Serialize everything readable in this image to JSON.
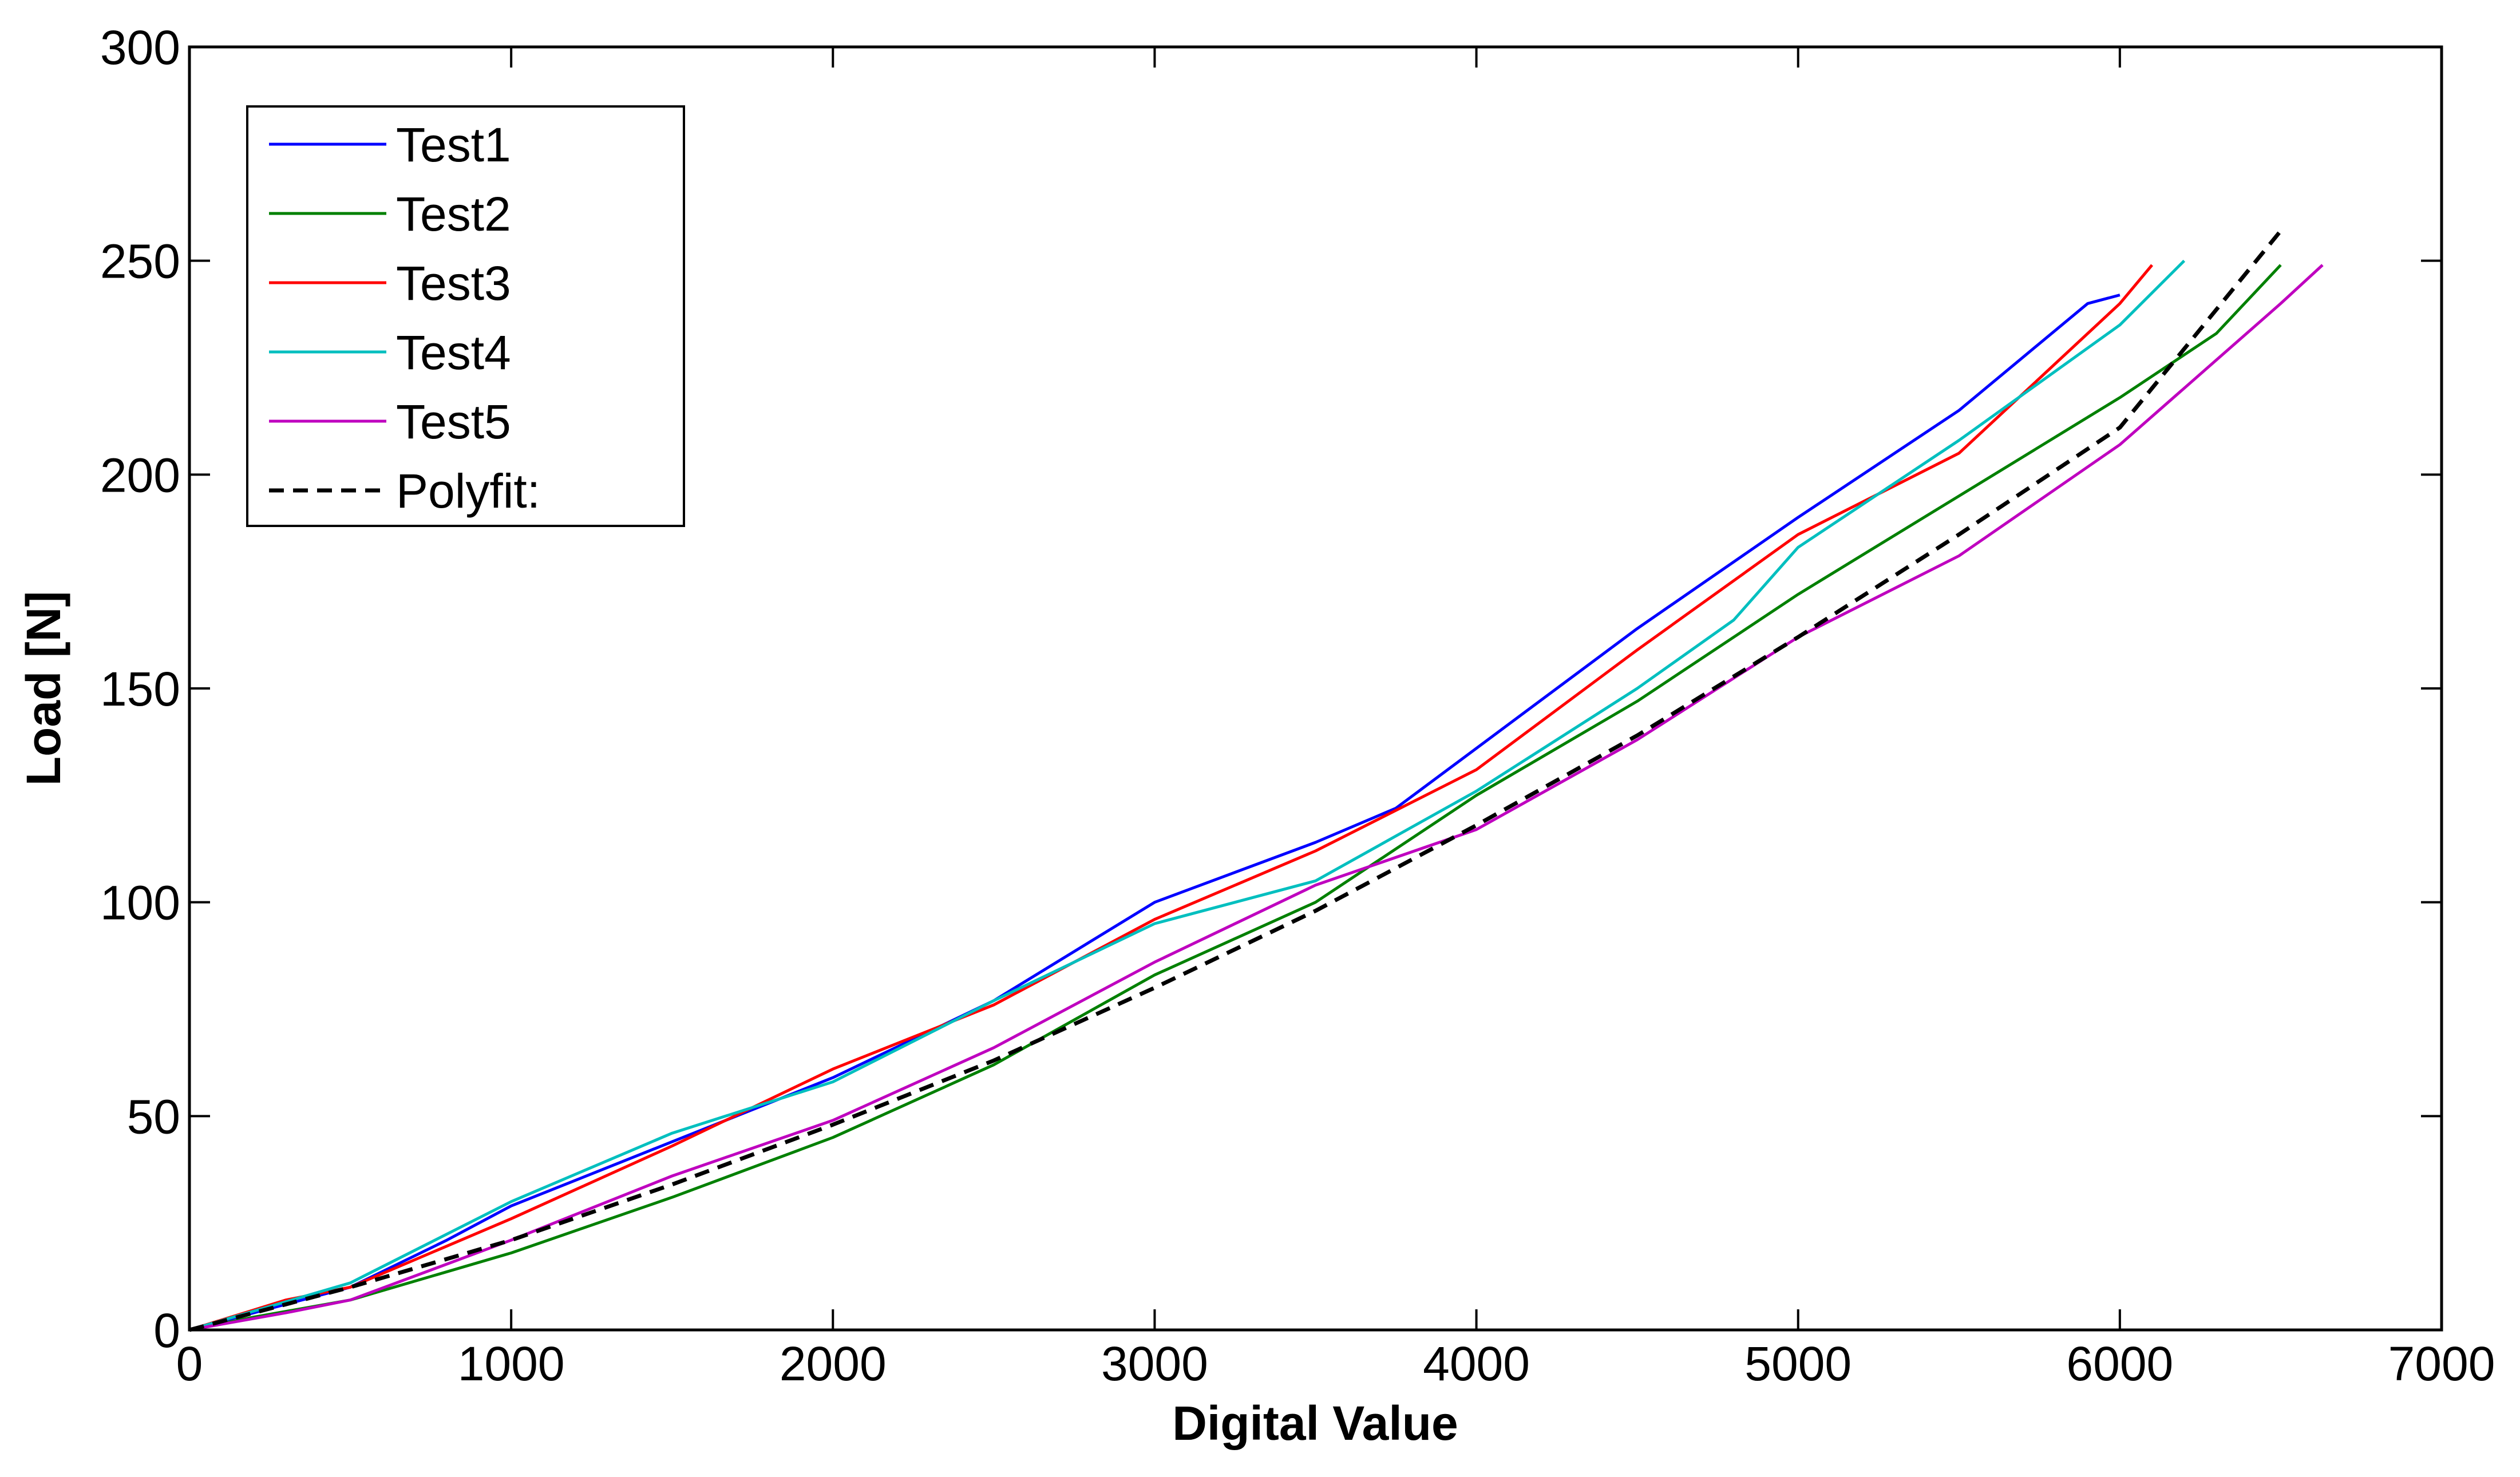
{
  "chart_data": {
    "type": "line",
    "title": "",
    "xlabel": "Digital Value",
    "ylabel": "Load [N]",
    "xlim": [
      0,
      7000
    ],
    "ylim": [
      0,
      300
    ],
    "xticks": [
      0,
      1000,
      2000,
      3000,
      4000,
      5000,
      6000,
      7000
    ],
    "yticks": [
      0,
      50,
      100,
      150,
      200,
      250,
      300
    ],
    "xtick_labels": [
      "0",
      "1000",
      "2000",
      "3000",
      "4000",
      "5000",
      "6000",
      "7000"
    ],
    "ytick_labels": [
      "0",
      "50",
      "100",
      "150",
      "200",
      "250",
      "300"
    ],
    "grid": false,
    "legend_position": "top-left",
    "series": [
      {
        "name": "Test1",
        "color": "#0000ff",
        "dash": "solid",
        "x": [
          0,
          200,
          500,
          800,
          1000,
          1500,
          2000,
          2500,
          3000,
          3500,
          3750,
          4000,
          4500,
          5000,
          5500,
          5900,
          6000
        ],
        "y": [
          0,
          4,
          10,
          21,
          29,
          44,
          59,
          77,
          100,
          114,
          122,
          136,
          164,
          190,
          215,
          240,
          242
        ]
      },
      {
        "name": "Test2",
        "color": "#008000",
        "dash": "solid",
        "x": [
          0,
          200,
          500,
          1000,
          1500,
          2000,
          2500,
          3000,
          3500,
          4000,
          4500,
          5000,
          5500,
          6000,
          6300,
          6500
        ],
        "y": [
          0,
          3,
          7,
          18,
          31,
          45,
          62,
          83,
          100,
          125,
          147,
          172,
          195,
          218,
          233,
          249
        ]
      },
      {
        "name": "Test3",
        "color": "#ff0000",
        "dash": "solid",
        "x": [
          0,
          300,
          500,
          1000,
          1500,
          2000,
          2500,
          3000,
          3500,
          4000,
          4500,
          5000,
          5500,
          6000,
          6100
        ],
        "y": [
          0,
          7,
          10,
          26,
          43,
          61,
          76,
          96,
          112,
          131,
          159,
          186,
          205,
          240,
          249
        ]
      },
      {
        "name": "Test4",
        "color": "#00bfbf",
        "dash": "solid",
        "x": [
          0,
          500,
          1000,
          1500,
          2000,
          2500,
          3000,
          3500,
          4000,
          4500,
          4800,
          5000,
          5500,
          6000,
          6200
        ],
        "y": [
          0,
          11,
          30,
          46,
          58,
          77,
          95,
          105,
          126,
          150,
          166,
          183,
          208,
          235,
          250
        ]
      },
      {
        "name": "Test5",
        "color": "#bf00bf",
        "dash": "solid",
        "x": [
          0,
          300,
          500,
          1000,
          1500,
          2000,
          2500,
          3000,
          3500,
          4000,
          4500,
          5000,
          5500,
          6000,
          6500,
          6630
        ],
        "y": [
          0,
          4,
          7,
          21,
          36,
          49,
          66,
          86,
          104,
          117,
          138,
          162,
          181,
          207,
          240,
          249
        ]
      },
      {
        "name": "Polyfit:",
        "color": "#000000",
        "dash": "dashed",
        "x": [
          0,
          500,
          1000,
          1500,
          2000,
          2500,
          3000,
          3500,
          4000,
          4500,
          5000,
          5500,
          6000,
          6500
        ],
        "y": [
          0,
          10,
          21,
          34,
          48,
          63,
          80,
          98,
          118,
          139,
          162,
          186,
          211,
          257
        ]
      }
    ]
  }
}
